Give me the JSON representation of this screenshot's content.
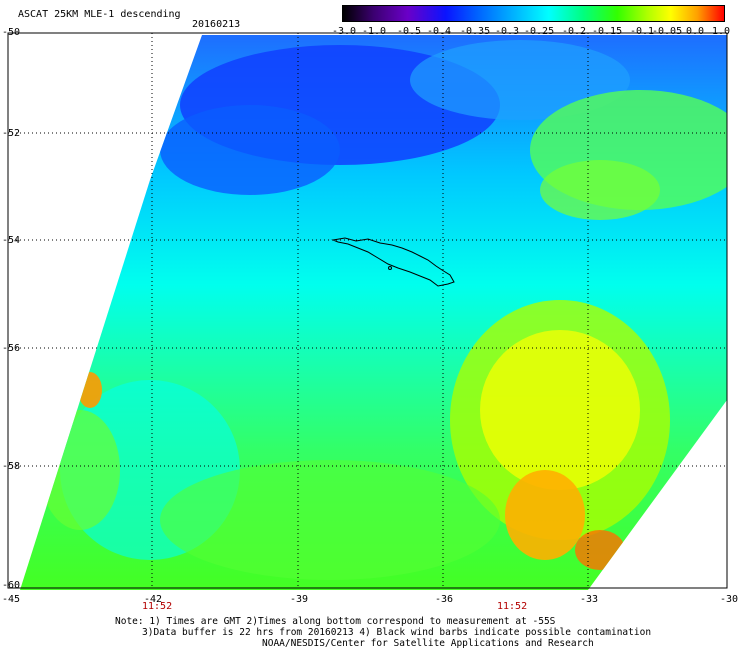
{
  "header": {
    "title": "ASCAT 25KM MLE-1 descending",
    "date": "20160213"
  },
  "colorbar": {
    "labels": [
      "-3.0",
      "-1.0",
      "-0.5",
      "-0.4",
      "-0.35",
      "-0.3",
      "-0.25",
      "-0.2",
      "-0.15",
      "-0.1",
      "-0.05",
      "0.0",
      "1.0"
    ]
  },
  "axes": {
    "lat_labels": [
      "-50",
      "-52",
      "-54",
      "-56",
      "-58",
      "-60"
    ],
    "lon_labels": [
      "-45",
      "-42",
      "-39",
      "-36",
      "-33",
      "-30"
    ],
    "time_labels": [
      "11:52",
      "11:52"
    ]
  },
  "notes": {
    "line1": "Note: 1) Times are GMT 2)Times along bottom correspond to measurement at -55S",
    "line2": "3)Data buffer is 22 hrs from 20160213 4) Black wind barbs indicate possible contamination",
    "line3": "NOAA/NESDIS/Center for Satellite Applications and Research"
  },
  "colors": {
    "ocean_cyan": "#00ffff",
    "blue": "#0050ff",
    "green": "#33ff33",
    "yellow": "#ffff00",
    "orange": "#ffa000",
    "grid": "#000000"
  }
}
